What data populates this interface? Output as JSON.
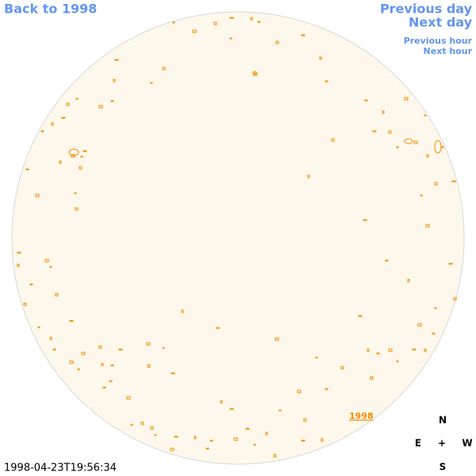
{
  "nav": {
    "back": "Back to 1998",
    "previous_day": "Previous day",
    "next_day": "Next day",
    "previous_hour": "Previous hour",
    "next_hour": "Next hour"
  },
  "image": {
    "year_link": "1998",
    "timestamp": "1998-04-23T19:56:34"
  },
  "compass": {
    "north": "N",
    "east": "E",
    "center": "+",
    "west": "W",
    "south": "S"
  }
}
